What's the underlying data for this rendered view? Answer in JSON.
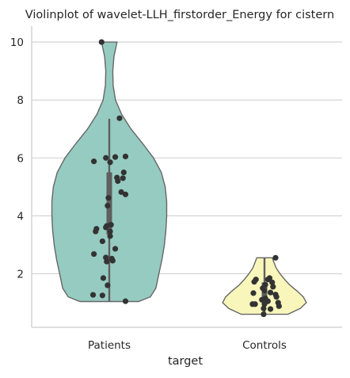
{
  "chart_data": {
    "type": "violin",
    "title": "Violinplot of wavelet-LLH_firstorder_Energy for cistern",
    "xlabel": "target",
    "ylabel": "",
    "categories": [
      "Patients",
      "Controls"
    ],
    "ylim": [
      0.15,
      10.55
    ],
    "yticks": [
      2,
      4,
      6,
      8,
      10
    ],
    "grid": true,
    "colors": {
      "Patients": "#96cbc1",
      "Controls": "#f8f6bb",
      "outline": "#666666",
      "points": "#333333",
      "grid": "#d0d0d0",
      "axes": "#cccccc"
    },
    "violins": [
      {
        "name": "Patients",
        "range": [
          1.04,
          10.0
        ],
        "quartiles": [
          3.35,
          4.55,
          5.5
        ],
        "whisker": [
          1.04,
          7.35
        ],
        "density": [
          [
            1.04,
            0.38
          ],
          [
            1.2,
            0.53
          ],
          [
            1.5,
            0.6
          ],
          [
            2.0,
            0.64
          ],
          [
            2.5,
            0.68
          ],
          [
            3.0,
            0.71
          ],
          [
            3.5,
            0.73
          ],
          [
            4.0,
            0.74
          ],
          [
            4.5,
            0.74
          ],
          [
            5.0,
            0.72
          ],
          [
            5.5,
            0.67
          ],
          [
            6.0,
            0.57
          ],
          [
            6.5,
            0.43
          ],
          [
            7.0,
            0.28
          ],
          [
            7.5,
            0.16
          ],
          [
            8.0,
            0.08
          ],
          [
            8.5,
            0.05
          ],
          [
            9.0,
            0.045
          ],
          [
            9.5,
            0.06
          ],
          [
            10.0,
            0.1
          ]
        ],
        "points": [
          [
            -0.09,
            10.0
          ],
          [
            0.12,
            7.37
          ],
          [
            -0.18,
            5.88
          ],
          [
            -0.04,
            6.0
          ],
          [
            0.07,
            6.03
          ],
          [
            0.19,
            6.05
          ],
          [
            0.01,
            5.85
          ],
          [
            0.17,
            5.5
          ],
          [
            0.09,
            5.32
          ],
          [
            0.16,
            5.3
          ],
          [
            0.1,
            5.2
          ],
          [
            0.14,
            4.82
          ],
          [
            0.19,
            4.74
          ],
          [
            -0.01,
            4.62
          ],
          [
            -0.02,
            4.35
          ],
          [
            0.02,
            3.69
          ],
          [
            -0.03,
            3.65
          ],
          [
            -0.04,
            3.6
          ],
          [
            -0.15,
            3.55
          ],
          [
            -0.16,
            3.46
          ],
          [
            0.01,
            3.46
          ],
          [
            0.01,
            3.3
          ],
          [
            -0.08,
            3.12
          ],
          [
            0.07,
            2.86
          ],
          [
            -0.18,
            2.68
          ],
          [
            -0.04,
            2.56
          ],
          [
            0.03,
            2.52
          ],
          [
            0.04,
            2.45
          ],
          [
            -0.03,
            2.42
          ],
          [
            -0.07,
            1.85
          ],
          [
            -0.02,
            1.6
          ],
          [
            -0.19,
            1.27
          ],
          [
            -0.08,
            1.25
          ],
          [
            0.19,
            1.05
          ]
        ]
      },
      {
        "name": "Controls",
        "range": [
          0.6,
          2.55
        ],
        "quartiles": [
          0.95,
          1.1,
          1.7
        ],
        "whisker": [
          0.6,
          2.55
        ],
        "density": [
          [
            0.6,
            0.3
          ],
          [
            0.8,
            0.46
          ],
          [
            1.0,
            0.54
          ],
          [
            1.2,
            0.5
          ],
          [
            1.4,
            0.42
          ],
          [
            1.6,
            0.33
          ],
          [
            1.8,
            0.26
          ],
          [
            2.0,
            0.2
          ],
          [
            2.2,
            0.15
          ],
          [
            2.4,
            0.12
          ],
          [
            2.55,
            0.1
          ]
        ],
        "points": [
          [
            0.06,
            1.85
          ],
          [
            0.09,
            1.7
          ],
          [
            0.1,
            1.55
          ],
          [
            0.04,
            1.8
          ],
          [
            -0.12,
            1.72
          ],
          [
            -0.1,
            1.8
          ],
          [
            0.01,
            1.62
          ],
          [
            -0.02,
            1.5
          ],
          [
            0.13,
            2.55
          ],
          [
            0.0,
            1.42
          ],
          [
            0.07,
            1.35
          ],
          [
            -0.13,
            1.33
          ],
          [
            0.13,
            1.28
          ],
          [
            0.14,
            1.2
          ],
          [
            0.01,
            1.15
          ],
          [
            -0.03,
            1.1
          ],
          [
            0.04,
            1.05
          ],
          [
            0.16,
            1.0
          ],
          [
            -0.11,
            0.95
          ],
          [
            -0.14,
            0.95
          ],
          [
            0.0,
            0.95
          ],
          [
            0.17,
            0.88
          ],
          [
            -0.01,
            0.8
          ],
          [
            0.07,
            0.78
          ],
          [
            -0.01,
            0.6
          ]
        ]
      }
    ]
  }
}
